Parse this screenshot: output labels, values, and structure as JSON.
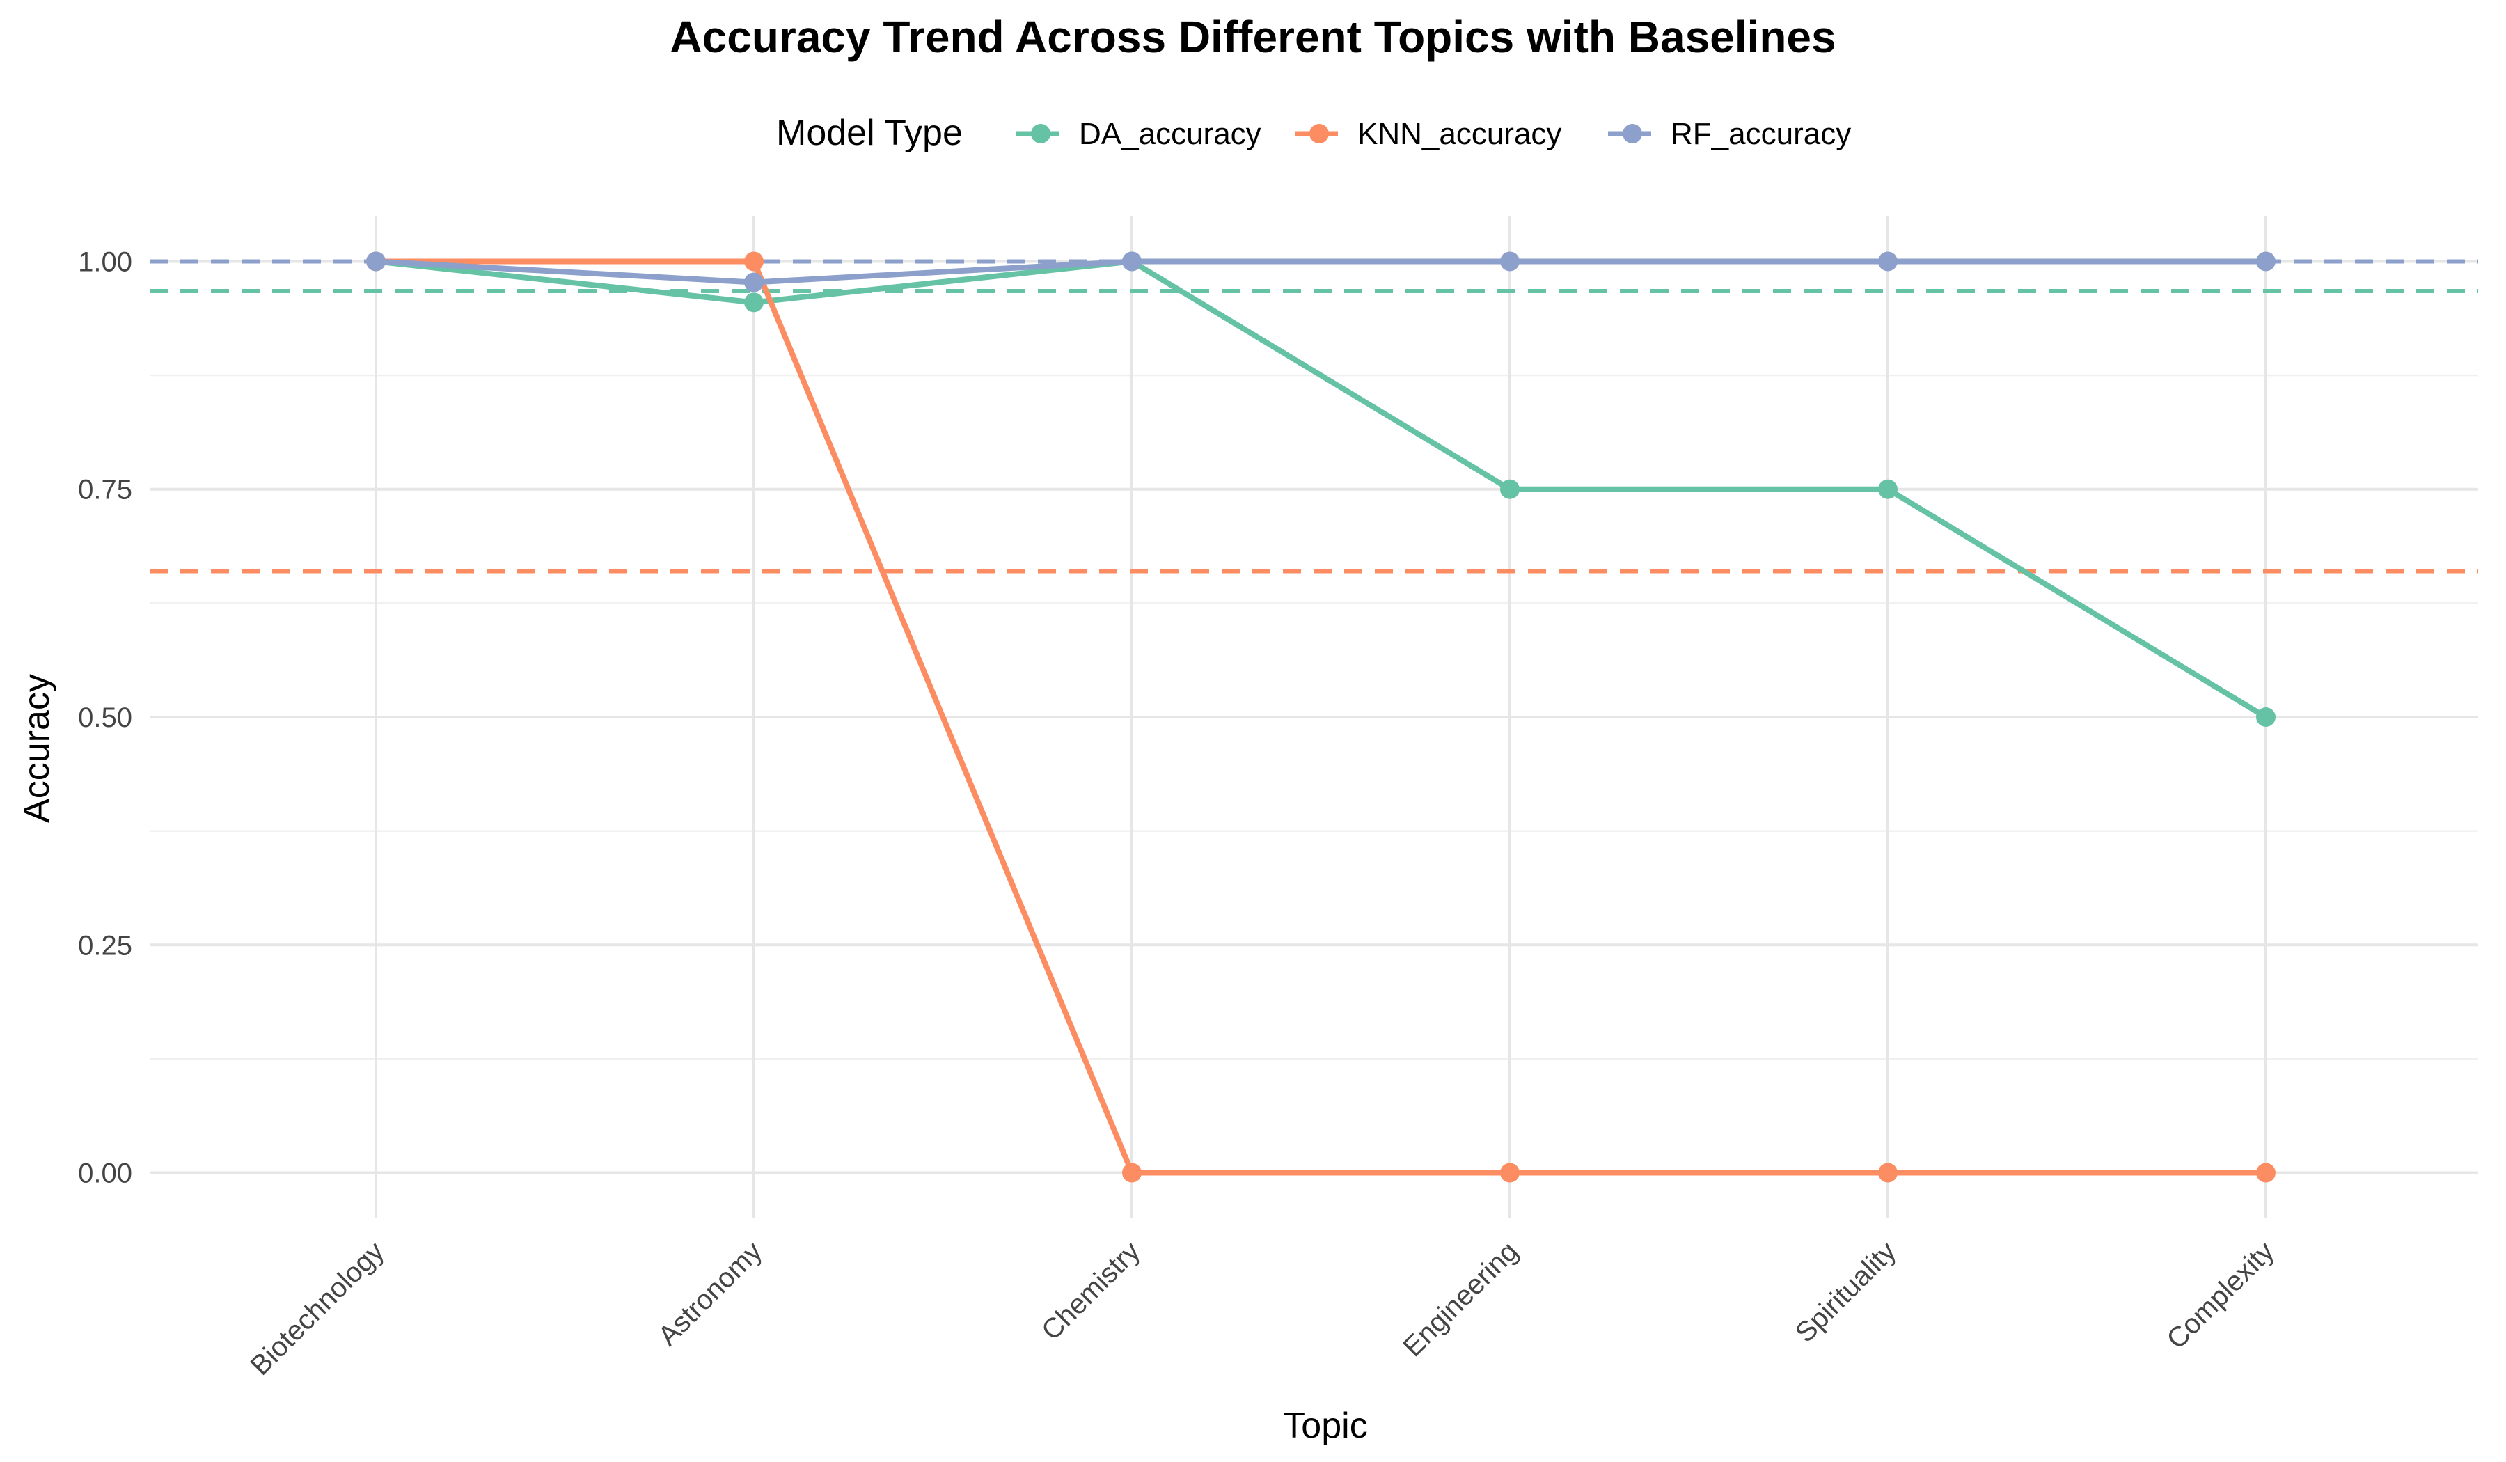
{
  "chart_data": {
    "type": "line",
    "title": "Accuracy Trend Across Different Topics with Baselines",
    "xlabel": "Topic",
    "ylabel": "Accuracy",
    "legend_title": "Model Type",
    "legend_position": "top",
    "categories": [
      "Biotechnology",
      "Astronomy",
      "Chemistry",
      "Engineering",
      "Spirituality",
      "Complexity"
    ],
    "ylim": [
      -0.05,
      1.05
    ],
    "yticks": [
      0.0,
      0.25,
      0.5,
      0.75,
      1.0
    ],
    "ytick_labels": [
      "0.00",
      "0.25",
      "0.50",
      "0.75",
      "1.00"
    ],
    "grid": true,
    "series": [
      {
        "name": "DA_accuracy",
        "color": "#66c2a5",
        "values": [
          1.0,
          0.955,
          1.0,
          0.75,
          0.75,
          0.5
        ],
        "baseline": 0.9675
      },
      {
        "name": "KNN_accuracy",
        "color": "#fc8d62",
        "values": [
          1.0,
          1.0,
          0.0,
          0.0,
          0.0,
          0.0
        ],
        "baseline": 0.66
      },
      {
        "name": "RF_accuracy",
        "color": "#8da0cb",
        "values": [
          1.0,
          0.977,
          1.0,
          1.0,
          1.0,
          1.0
        ],
        "baseline": 1.0
      }
    ]
  }
}
